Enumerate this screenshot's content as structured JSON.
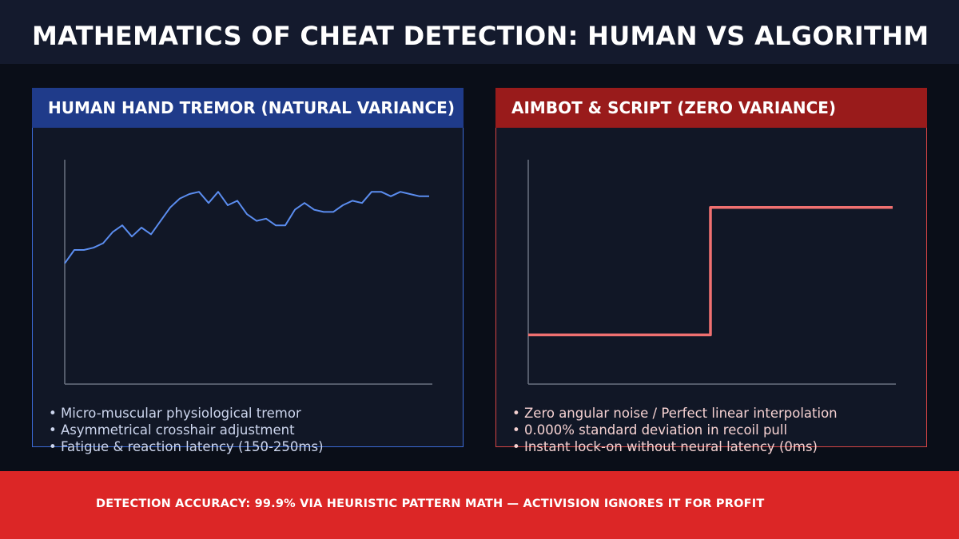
{
  "header": {
    "title": "MATHEMATICS OF CHEAT DETECTION: HUMAN VS ALGORITHM"
  },
  "panels": {
    "human": {
      "title": "HUMAN HAND TREMOR (NATURAL VARIANCE)",
      "bullets": [
        "Micro-muscular physiological tremor",
        "Asymmetrical crosshair adjustment",
        "Fatigue & reaction latency (150-250ms)"
      ]
    },
    "bot": {
      "title": "AIMBOT & SCRIPT (ZERO VARIANCE)",
      "bullets": [
        "Zero angular noise / Perfect linear interpolation",
        "0.000% standard deviation in recoil pull",
        "Instant lock-on without neural latency (0ms)"
      ]
    }
  },
  "footer": {
    "text": "DETECTION ACCURACY: 99.9% VIA HEURISTIC PATTERN MATH — ACTIVISION IGNORES IT FOR PROFIT"
  },
  "colors": {
    "human_line": "#5b8def",
    "bot_line": "#f07070",
    "axis": "#6b7280"
  },
  "chart_data": [
    {
      "type": "line",
      "name": "human",
      "title": "",
      "xlabel": "",
      "ylabel": "",
      "xlim": [
        0,
        38
      ],
      "ylim": [
        0,
        100
      ],
      "grid": false,
      "x": [
        0,
        1,
        2,
        3,
        4,
        5,
        6,
        7,
        8,
        9,
        10,
        11,
        12,
        13,
        14,
        15,
        16,
        17,
        18,
        19,
        20,
        21,
        22,
        23,
        24,
        25,
        26,
        27,
        28,
        29,
        30,
        31,
        32,
        33,
        34,
        35,
        36,
        37,
        38
      ],
      "series": [
        {
          "values": [
            54,
            60,
            60,
            61,
            63,
            68,
            71,
            66,
            70,
            67,
            73,
            79,
            83,
            85,
            86,
            81,
            86,
            80,
            82,
            76,
            73,
            74,
            71,
            71,
            78,
            81,
            78,
            77,
            77,
            80,
            82,
            81,
            86,
            86,
            84,
            86,
            85,
            84,
            84
          ]
        }
      ]
    },
    {
      "type": "line",
      "name": "bot",
      "title": "",
      "xlabel": "",
      "ylabel": "",
      "xlim": [
        0,
        100
      ],
      "ylim": [
        0,
        100
      ],
      "grid": false,
      "series": [
        {
          "x": [
            0,
            50,
            50,
            100
          ],
          "values": [
            22,
            22,
            79,
            79
          ]
        }
      ]
    }
  ]
}
